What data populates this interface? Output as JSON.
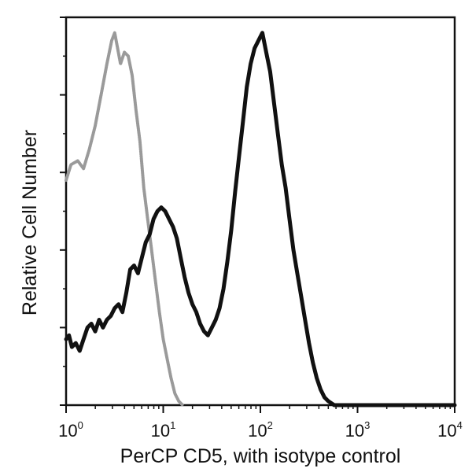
{
  "chart_data": {
    "type": "line",
    "title": "",
    "xlabel": "PerCP CD5, with isotype control",
    "ylabel": "Relative Cell Number",
    "xscale": "log",
    "xlim": [
      1,
      10000
    ],
    "ylim": [
      0,
      100
    ],
    "xtick_labels": [
      "10^0",
      "10^1",
      "10^2",
      "10^3",
      "10^4"
    ],
    "xtick_exponents": [
      "0",
      "1",
      "2",
      "3",
      "4"
    ],
    "ytick_count": 6,
    "ytick_labels": [],
    "grid": false,
    "legend": null,
    "series": [
      {
        "name": "Isotype control",
        "color": "#9a9a9a",
        "style": "dotted-gray",
        "points_log10x_y": [
          [
            0.0,
            58
          ],
          [
            0.05,
            62
          ],
          [
            0.12,
            63
          ],
          [
            0.18,
            61
          ],
          [
            0.24,
            66
          ],
          [
            0.3,
            72
          ],
          [
            0.36,
            80
          ],
          [
            0.42,
            88
          ],
          [
            0.47,
            94
          ],
          [
            0.5,
            96
          ],
          [
            0.53,
            92
          ],
          [
            0.56,
            88
          ],
          [
            0.6,
            91
          ],
          [
            0.64,
            90
          ],
          [
            0.68,
            85
          ],
          [
            0.72,
            76
          ],
          [
            0.76,
            68
          ],
          [
            0.8,
            56
          ],
          [
            0.84,
            48
          ],
          [
            0.88,
            40
          ],
          [
            0.92,
            32
          ],
          [
            0.96,
            24
          ],
          [
            1.0,
            17
          ],
          [
            1.04,
            12
          ],
          [
            1.08,
            7
          ],
          [
            1.12,
            3
          ],
          [
            1.16,
            1
          ],
          [
            1.2,
            0
          ]
        ]
      },
      {
        "name": "PerCP CD5",
        "color": "#111111",
        "style": "solid-black",
        "points_log10x_y": [
          [
            0.0,
            17
          ],
          [
            0.03,
            18
          ],
          [
            0.06,
            15
          ],
          [
            0.1,
            16
          ],
          [
            0.14,
            14
          ],
          [
            0.18,
            17
          ],
          [
            0.22,
            20
          ],
          [
            0.26,
            21
          ],
          [
            0.3,
            19
          ],
          [
            0.34,
            22
          ],
          [
            0.38,
            20
          ],
          [
            0.42,
            22
          ],
          [
            0.46,
            23
          ],
          [
            0.5,
            25
          ],
          [
            0.54,
            26
          ],
          [
            0.58,
            24
          ],
          [
            0.62,
            29
          ],
          [
            0.66,
            35
          ],
          [
            0.7,
            36
          ],
          [
            0.74,
            34
          ],
          [
            0.78,
            38
          ],
          [
            0.82,
            42
          ],
          [
            0.86,
            44
          ],
          [
            0.9,
            48
          ],
          [
            0.94,
            50
          ],
          [
            0.98,
            51
          ],
          [
            1.02,
            50
          ],
          [
            1.06,
            48
          ],
          [
            1.1,
            46
          ],
          [
            1.14,
            43
          ],
          [
            1.18,
            38
          ],
          [
            1.22,
            33
          ],
          [
            1.26,
            29
          ],
          [
            1.3,
            26
          ],
          [
            1.34,
            24
          ],
          [
            1.38,
            21
          ],
          [
            1.42,
            19
          ],
          [
            1.46,
            18
          ],
          [
            1.5,
            20
          ],
          [
            1.54,
            22
          ],
          [
            1.58,
            25
          ],
          [
            1.62,
            30
          ],
          [
            1.66,
            37
          ],
          [
            1.7,
            45
          ],
          [
            1.74,
            55
          ],
          [
            1.78,
            64
          ],
          [
            1.82,
            73
          ],
          [
            1.86,
            82
          ],
          [
            1.9,
            88
          ],
          [
            1.94,
            92
          ],
          [
            1.98,
            94
          ],
          [
            2.02,
            96
          ],
          [
            2.06,
            91
          ],
          [
            2.1,
            86
          ],
          [
            2.14,
            78
          ],
          [
            2.18,
            70
          ],
          [
            2.22,
            62
          ],
          [
            2.26,
            56
          ],
          [
            2.3,
            48
          ],
          [
            2.34,
            40
          ],
          [
            2.38,
            34
          ],
          [
            2.42,
            28
          ],
          [
            2.46,
            22
          ],
          [
            2.5,
            16
          ],
          [
            2.54,
            11
          ],
          [
            2.58,
            7
          ],
          [
            2.62,
            4
          ],
          [
            2.66,
            2
          ],
          [
            2.7,
            1
          ],
          [
            2.76,
            0
          ],
          [
            4.0,
            0
          ]
        ]
      }
    ]
  },
  "axes": {
    "x_title": "PerCP CD5, with isotype control",
    "y_title": "Relative Cell Number",
    "x_tick_base": "10",
    "x_tick_exponents": [
      "0",
      "1",
      "2",
      "3",
      "4"
    ]
  }
}
